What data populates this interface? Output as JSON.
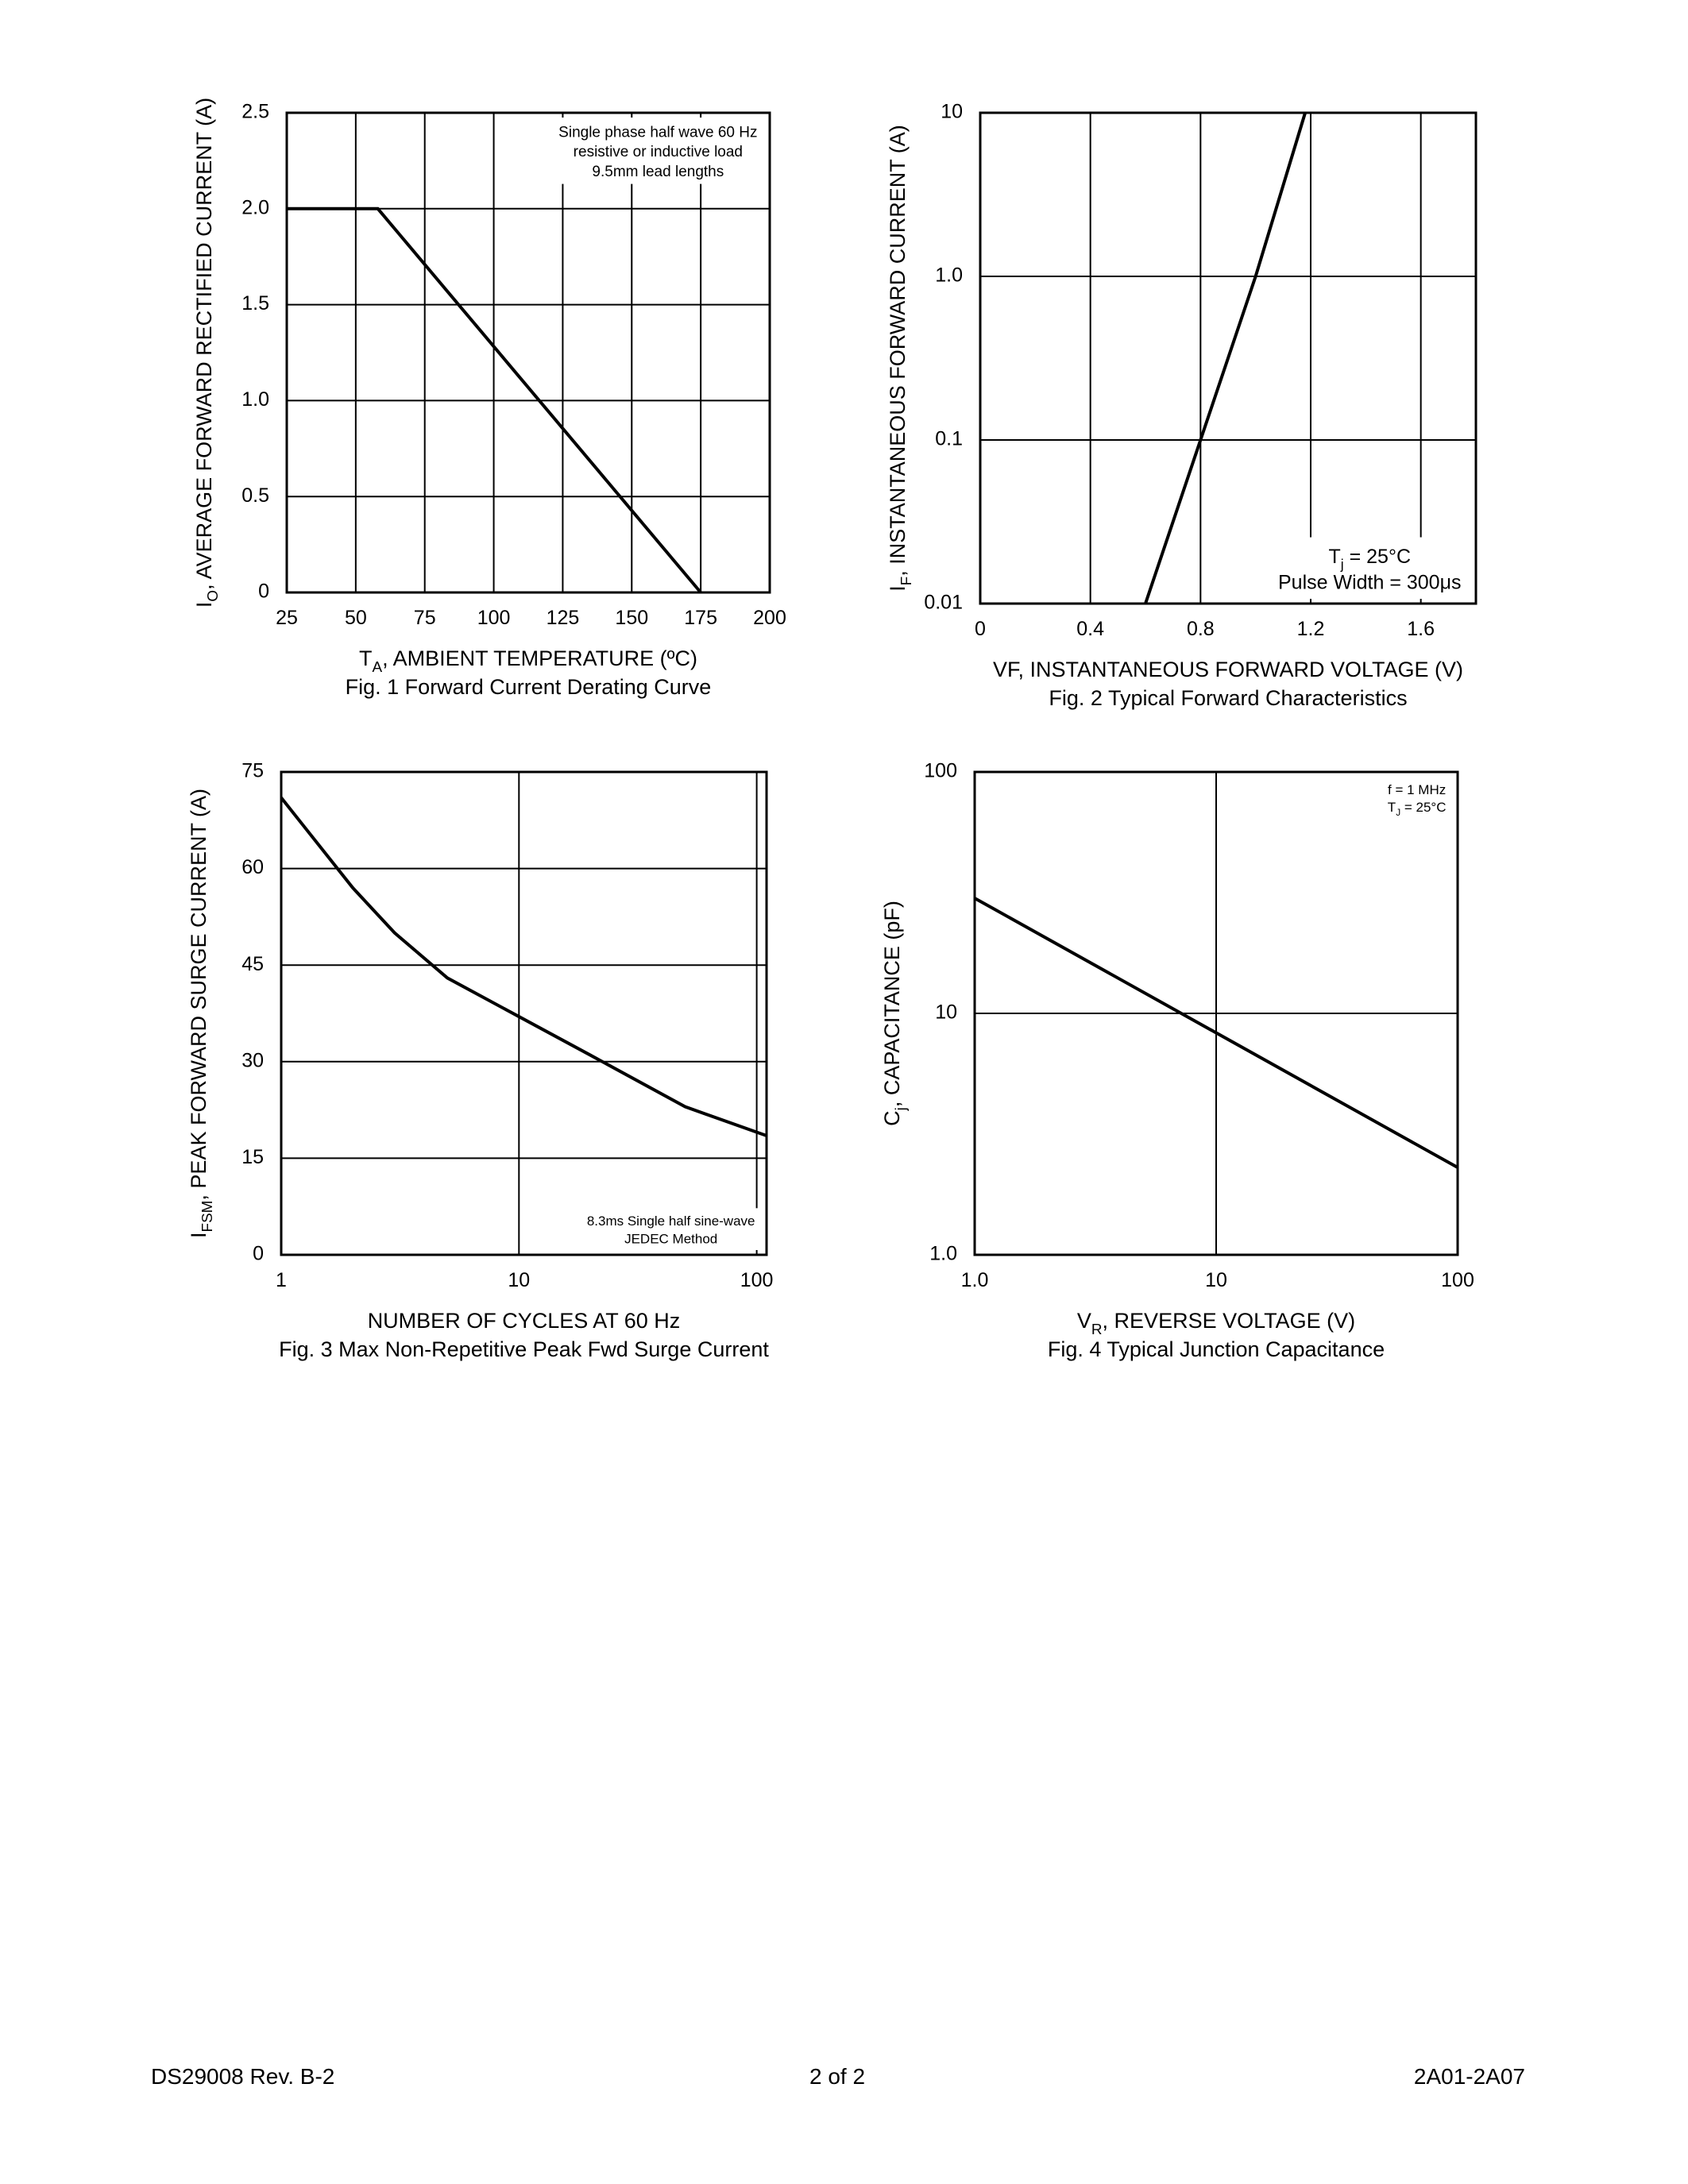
{
  "chart_data": [
    {
      "type": "line",
      "xlim": [
        25,
        200
      ],
      "ylim": [
        0,
        2.5
      ],
      "xticks": [
        25,
        50,
        75,
        100,
        125,
        150,
        175,
        200
      ],
      "yticks": [
        0,
        0.5,
        {
          "value": 1,
          "label": "1.0"
        },
        {
          "value": 1.5,
          "label": "1.5"
        },
        {
          "value": 2,
          "label": "2.0"
        },
        2.5
      ],
      "grid": true,
      "xlabel": [
        "T",
        "A",
        ", AMBIENT TEMPERATURE (ºC)"
      ],
      "ylabel": [
        "I",
        "O",
        ", AVERAGE FORWARD RECTIFIED CURRENT (A)"
      ],
      "caption": "Fig. 1  Forward Current Derating Curve",
      "annotation": [
        "Single phase half wave 60 Hz",
        "resistive or inductive load",
        "9.5mm lead lengths"
      ],
      "annotation_corner": "top-right",
      "series": [
        {
          "color": "#000000",
          "x": [
            25,
            58,
            175
          ],
          "values": [
            2.0,
            2.0,
            0
          ]
        }
      ]
    },
    {
      "type": "line",
      "xlim": [
        0,
        1.8
      ],
      "ylim": [
        0.01,
        10
      ],
      "yscale": "log",
      "xticks": [
        0,
        0.4,
        0.8,
        1.2,
        1.6
      ],
      "yticks": [
        0.01,
        0.1,
        {
          "value": 1,
          "label": "1.0"
        },
        10
      ],
      "grid": true,
      "xlabel": "VF, INSTANTANEOUS FORWARD VOLTAGE (V)",
      "ylabel": [
        "I",
        "F",
        ", INSTANTANEOUS FORWARD CURRENT (A)"
      ],
      "caption": "Fig. 2  Typical Forward Characteristics",
      "annotation": [
        [
          "T",
          "j",
          " = 25°C"
        ],
        "Pulse Width = 300μs"
      ],
      "annotation_corner": "bottom-right",
      "series": [
        {
          "color": "#000000",
          "x": [
            0.6,
            0.8,
            1.0,
            1.18
          ],
          "values": [
            0.01,
            0.1,
            1,
            10
          ]
        }
      ]
    },
    {
      "type": "line",
      "xlim": [
        1,
        110
      ],
      "xscale": "log",
      "ylim": [
        0,
        75
      ],
      "xticks": [
        1,
        10,
        100
      ],
      "yticks": [
        0,
        15,
        30,
        45,
        60,
        75
      ],
      "grid": true,
      "xlabel": "NUMBER OF CYCLES AT 60 Hz",
      "ylabel": [
        "I",
        "FSM",
        ", PEAK FORWARD SURGE CURRENT (A)"
      ],
      "caption": "Fig. 3  Max Non-Repetitive Peak Fwd Surge Current",
      "annotation": [
        "8.3ms Single half sine-wave",
        "JEDEC Method"
      ],
      "annotation_corner": "bottom-right",
      "series": [
        {
          "color": "#000000",
          "x": [
            1,
            2,
            3,
            5,
            10,
            20,
            50,
            110
          ],
          "values": [
            71,
            57,
            50,
            43,
            37,
            31,
            23,
            18.5
          ]
        }
      ]
    },
    {
      "type": "line",
      "xlim": [
        1,
        100
      ],
      "xscale": "log",
      "ylim": [
        1,
        100
      ],
      "yscale": "log",
      "xticks": [
        {
          "value": 1,
          "label": "1.0"
        },
        10,
        100
      ],
      "yticks": [
        {
          "value": 1,
          "label": "1.0"
        },
        10,
        100
      ],
      "grid": true,
      "xlabel": [
        "V",
        "R",
        ", REVERSE VOLTAGE (V)"
      ],
      "ylabel": [
        "C",
        "j",
        ", CAPACITANCE (pF)"
      ],
      "caption": "Fig. 4  Typical Junction Capacitance",
      "annotation": [
        "f = 1 MHz",
        [
          "T",
          "J",
          " = 25°C"
        ]
      ],
      "annotation_corner": "top-right",
      "series": [
        {
          "color": "#000000",
          "x": [
            1,
            100
          ],
          "values": [
            30,
            2.3
          ]
        }
      ]
    }
  ],
  "footer": {
    "left": "DS29008 Rev. B-2",
    "center": "2 of 2",
    "right": "2A01-2A07"
  }
}
